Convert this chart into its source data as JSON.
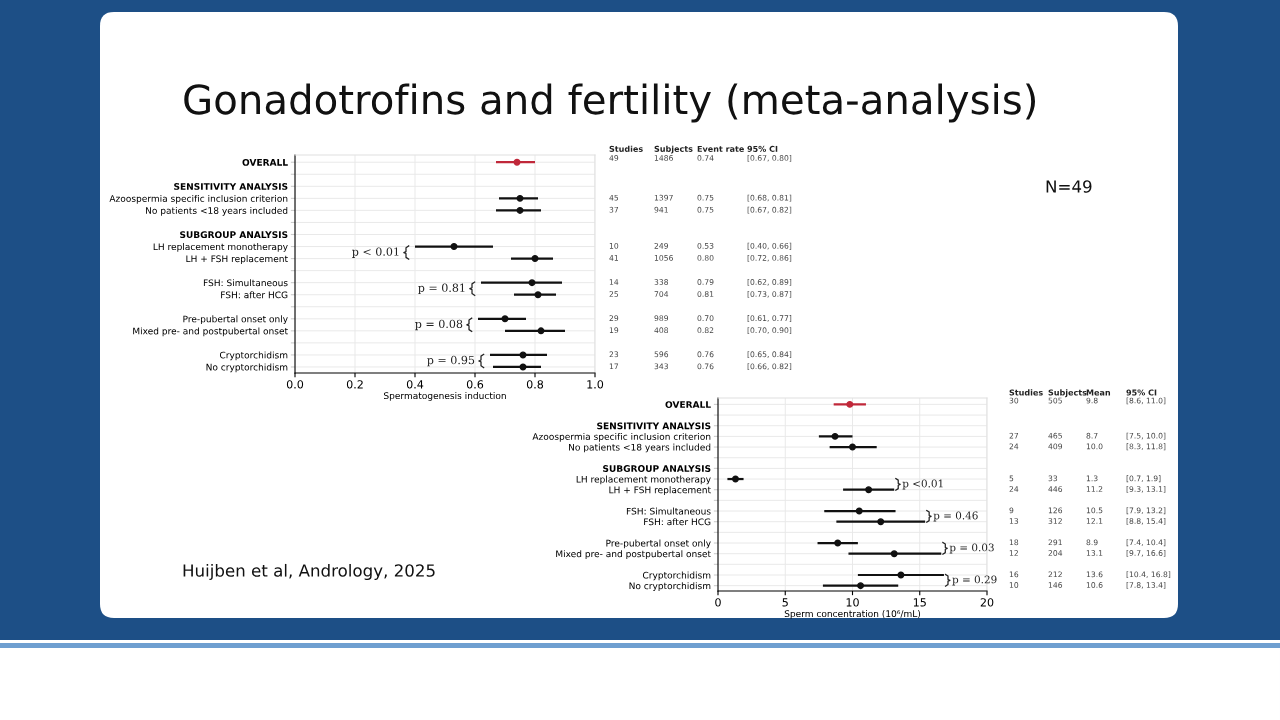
{
  "chart_data": [
    {
      "type": "scatter",
      "orientation": "horizontal",
      "title": "Gonadotrofins and fertility (meta-analysis)",
      "xlabel": "Spermatogenesis induction",
      "categories": [
        "OVERALL",
        null,
        "SENSITIVITY ANALYSIS",
        "Azoospermia specific inclusion criterion",
        "No patients <18 years included",
        null,
        "SUBGROUP ANALYSIS",
        "LH replacement monotherapy",
        "LH + FSH replacement",
        null,
        "FSH: Simultaneous",
        "FSH: after HCG",
        null,
        "Pre-pubertal onset only",
        "Mixed pre- and postpubertal onset",
        null,
        "Cryptorchidism",
        "No cryptorchidism"
      ],
      "values": [
        0.74,
        null,
        null,
        0.75,
        0.75,
        null,
        null,
        0.53,
        0.8,
        null,
        0.79,
        0.81,
        null,
        0.7,
        0.82,
        null,
        0.76,
        0.76
      ],
      "errors": [
        [
          0.67,
          0.8
        ],
        null,
        null,
        [
          0.68,
          0.81
        ],
        [
          0.67,
          0.82
        ],
        null,
        null,
        [
          0.4,
          0.66
        ],
        [
          0.72,
          0.86
        ],
        null,
        [
          0.62,
          0.89
        ],
        [
          0.73,
          0.87
        ],
        null,
        [
          0.61,
          0.77
        ],
        [
          0.7,
          0.9
        ],
        null,
        [
          0.65,
          0.84
        ],
        [
          0.66,
          0.82
        ]
      ],
      "colors": [
        "#c0283a",
        null,
        null,
        "#111111",
        "#111111",
        null,
        null,
        "#111111",
        "#111111",
        null,
        "#111111",
        "#111111",
        null,
        "#111111",
        "#111111",
        null,
        "#111111",
        "#111111"
      ],
      "xlim": [
        0,
        1.0
      ],
      "xticks": [
        {
          "value": 0,
          "label": "0.0"
        },
        0.2,
        0.4,
        0.6,
        0.8,
        {
          "value": 1.0,
          "label": "1.0"
        }
      ],
      "grid": true,
      "marker": "circle",
      "annotations": [
        "Studies",
        "Subjects",
        "Event rate",
        "95% CI",
        "49",
        "1486",
        "0.74",
        "[0.67, 0.80]",
        "45",
        "1397",
        "0.75",
        "[0.68, 0.81]",
        "37",
        "941",
        "0.75",
        "[0.67, 0.82]",
        "10",
        "249",
        "0.53",
        "[0.40, 0.66]",
        "41",
        "1056",
        "0.80",
        "[0.72, 0.86]",
        "14",
        "338",
        "0.79",
        "[0.62, 0.89]",
        "25",
        "704",
        "0.81",
        "[0.73, 0.87]",
        "29",
        "989",
        "0.70",
        "[0.61, 0.77]",
        "19",
        "408",
        "0.82",
        "[0.70, 0.90]",
        "23",
        "596",
        "0.76",
        "[0.65, 0.84]",
        "17",
        "343",
        "0.76",
        "[0.66, 0.82]",
        "p < 0.01",
        "p = 0.81",
        "p = 0.08",
        "p = 0.95",
        "N=49",
        "Huijben et al, Andrology, 2025"
      ]
    },
    {
      "type": "scatter",
      "orientation": "horizontal",
      "xlabel": "Sperm concentration (10⁶/mL)",
      "categories": [
        "OVERALL",
        null,
        "SENSITIVITY ANALYSIS",
        "Azoospermia specific inclusion criterion",
        "No patients <18 years included",
        null,
        "SUBGROUP ANALYSIS",
        "LH replacement monotherapy",
        "LH + FSH replacement",
        null,
        "FSH: Simultaneous",
        "FSH: after HCG",
        null,
        "Pre-pubertal onset only",
        "Mixed pre- and postpubertal onset",
        null,
        "Cryptorchidism",
        "No cryptorchidism"
      ],
      "values": [
        9.8,
        null,
        null,
        8.7,
        10.0,
        null,
        null,
        1.3,
        11.2,
        null,
        10.5,
        12.1,
        null,
        8.9,
        13.1,
        null,
        13.6,
        10.6
      ],
      "errors": [
        [
          8.6,
          11.0
        ],
        null,
        null,
        [
          7.5,
          10.0
        ],
        [
          8.3,
          11.8
        ],
        null,
        null,
        [
          0.7,
          1.9
        ],
        [
          9.3,
          13.1
        ],
        null,
        [
          7.9,
          13.2
        ],
        [
          8.8,
          15.4
        ],
        null,
        [
          7.4,
          10.4
        ],
        [
          9.7,
          16.6
        ],
        null,
        [
          10.4,
          16.8
        ],
        [
          7.8,
          13.4
        ]
      ],
      "colors": [
        "#c0283a",
        null,
        null,
        "#111111",
        "#111111",
        null,
        null,
        "#111111",
        "#111111",
        null,
        "#111111",
        "#111111",
        null,
        "#111111",
        "#111111",
        null,
        "#111111",
        "#111111"
      ],
      "xlim": [
        0,
        20
      ],
      "xticks": [
        0,
        5,
        10,
        15,
        20
      ],
      "grid": true,
      "marker": "circle",
      "annotations": [
        "Studies",
        "Subjects",
        "Mean",
        "95% CI",
        "30",
        "505",
        "9.8",
        "[8.6, 11.0]",
        "27",
        "465",
        "8.7",
        "[7.5, 10.0]",
        "24",
        "409",
        "10.0",
        "[8.3, 11.8]",
        "5",
        "33",
        "1.3",
        "[0.7, 1.9]",
        "24",
        "446",
        "11.2",
        "[9.3, 13.1]",
        "9",
        "126",
        "10.5",
        "[7.9, 13.2]",
        "13",
        "312",
        "12.1",
        "[8.8, 15.4]",
        "18",
        "291",
        "8.9",
        "[7.4, 10.4]",
        "12",
        "204",
        "13.1",
        "[9.7, 16.6]",
        "16",
        "212",
        "13.6",
        "[10.4, 16.8]",
        "10",
        "146",
        "10.6",
        "[7.8, 13.4]",
        "p <0.01",
        "p = 0.46",
        "p = 0.03",
        "p = 0.29"
      ]
    }
  ]
}
